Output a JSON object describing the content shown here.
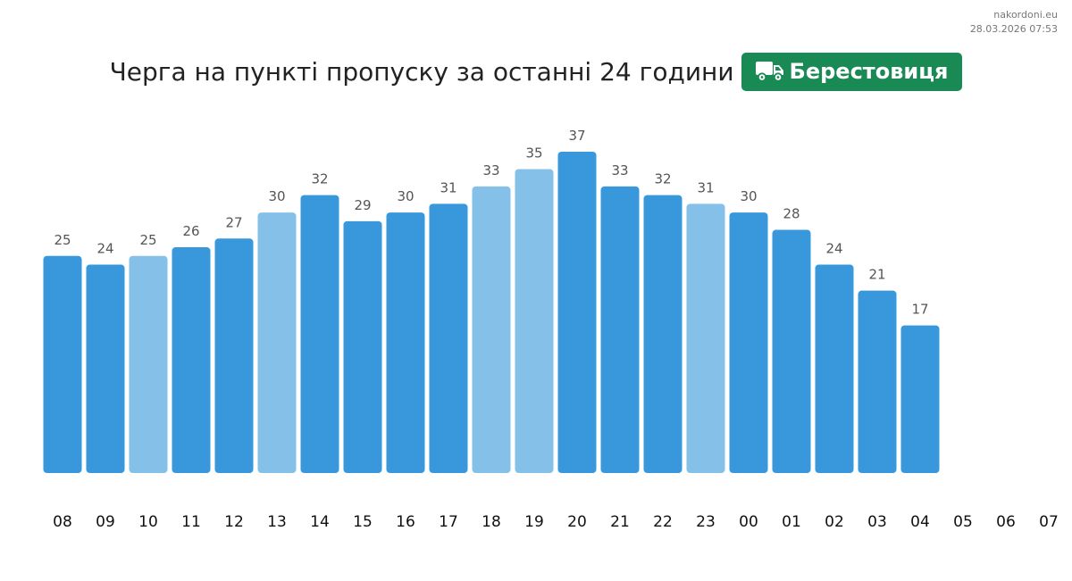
{
  "source": {
    "site": "nakordoni.eu",
    "timestamp": "28.03.2026 07:53"
  },
  "header": {
    "title": "Черга на пункті пропуску за останні 24 години",
    "checkpoint": "Берестовиця",
    "checkpoint_icon": "truck-icon"
  },
  "colors": {
    "bar": "#3998DB",
    "bar_highlight": "#85C0E9",
    "badge": "#1A8A54",
    "value_label": "#555555",
    "tick_label": "#111111"
  },
  "chart_data": {
    "type": "bar",
    "categories": [
      "08",
      "09",
      "10",
      "11",
      "12",
      "13",
      "14",
      "15",
      "16",
      "17",
      "18",
      "19",
      "20",
      "21",
      "22",
      "23",
      "00",
      "01",
      "02",
      "03",
      "04",
      "05",
      "06",
      "07"
    ],
    "values": [
      25,
      24,
      25,
      26,
      27,
      30,
      32,
      29,
      30,
      31,
      33,
      35,
      37,
      33,
      32,
      31,
      30,
      28,
      24,
      21,
      17,
      null,
      null,
      null
    ],
    "highlighted": [
      false,
      false,
      true,
      false,
      false,
      true,
      false,
      false,
      false,
      false,
      true,
      true,
      false,
      false,
      false,
      true,
      false,
      false,
      false,
      false,
      false,
      false,
      false,
      false
    ],
    "title": "Черга на пункті пропуску за останні 24 години",
    "xlabel": "",
    "ylabel": "",
    "ylim": [
      0,
      37
    ],
    "grid": false,
    "legend": "none",
    "data_labels": true
  }
}
